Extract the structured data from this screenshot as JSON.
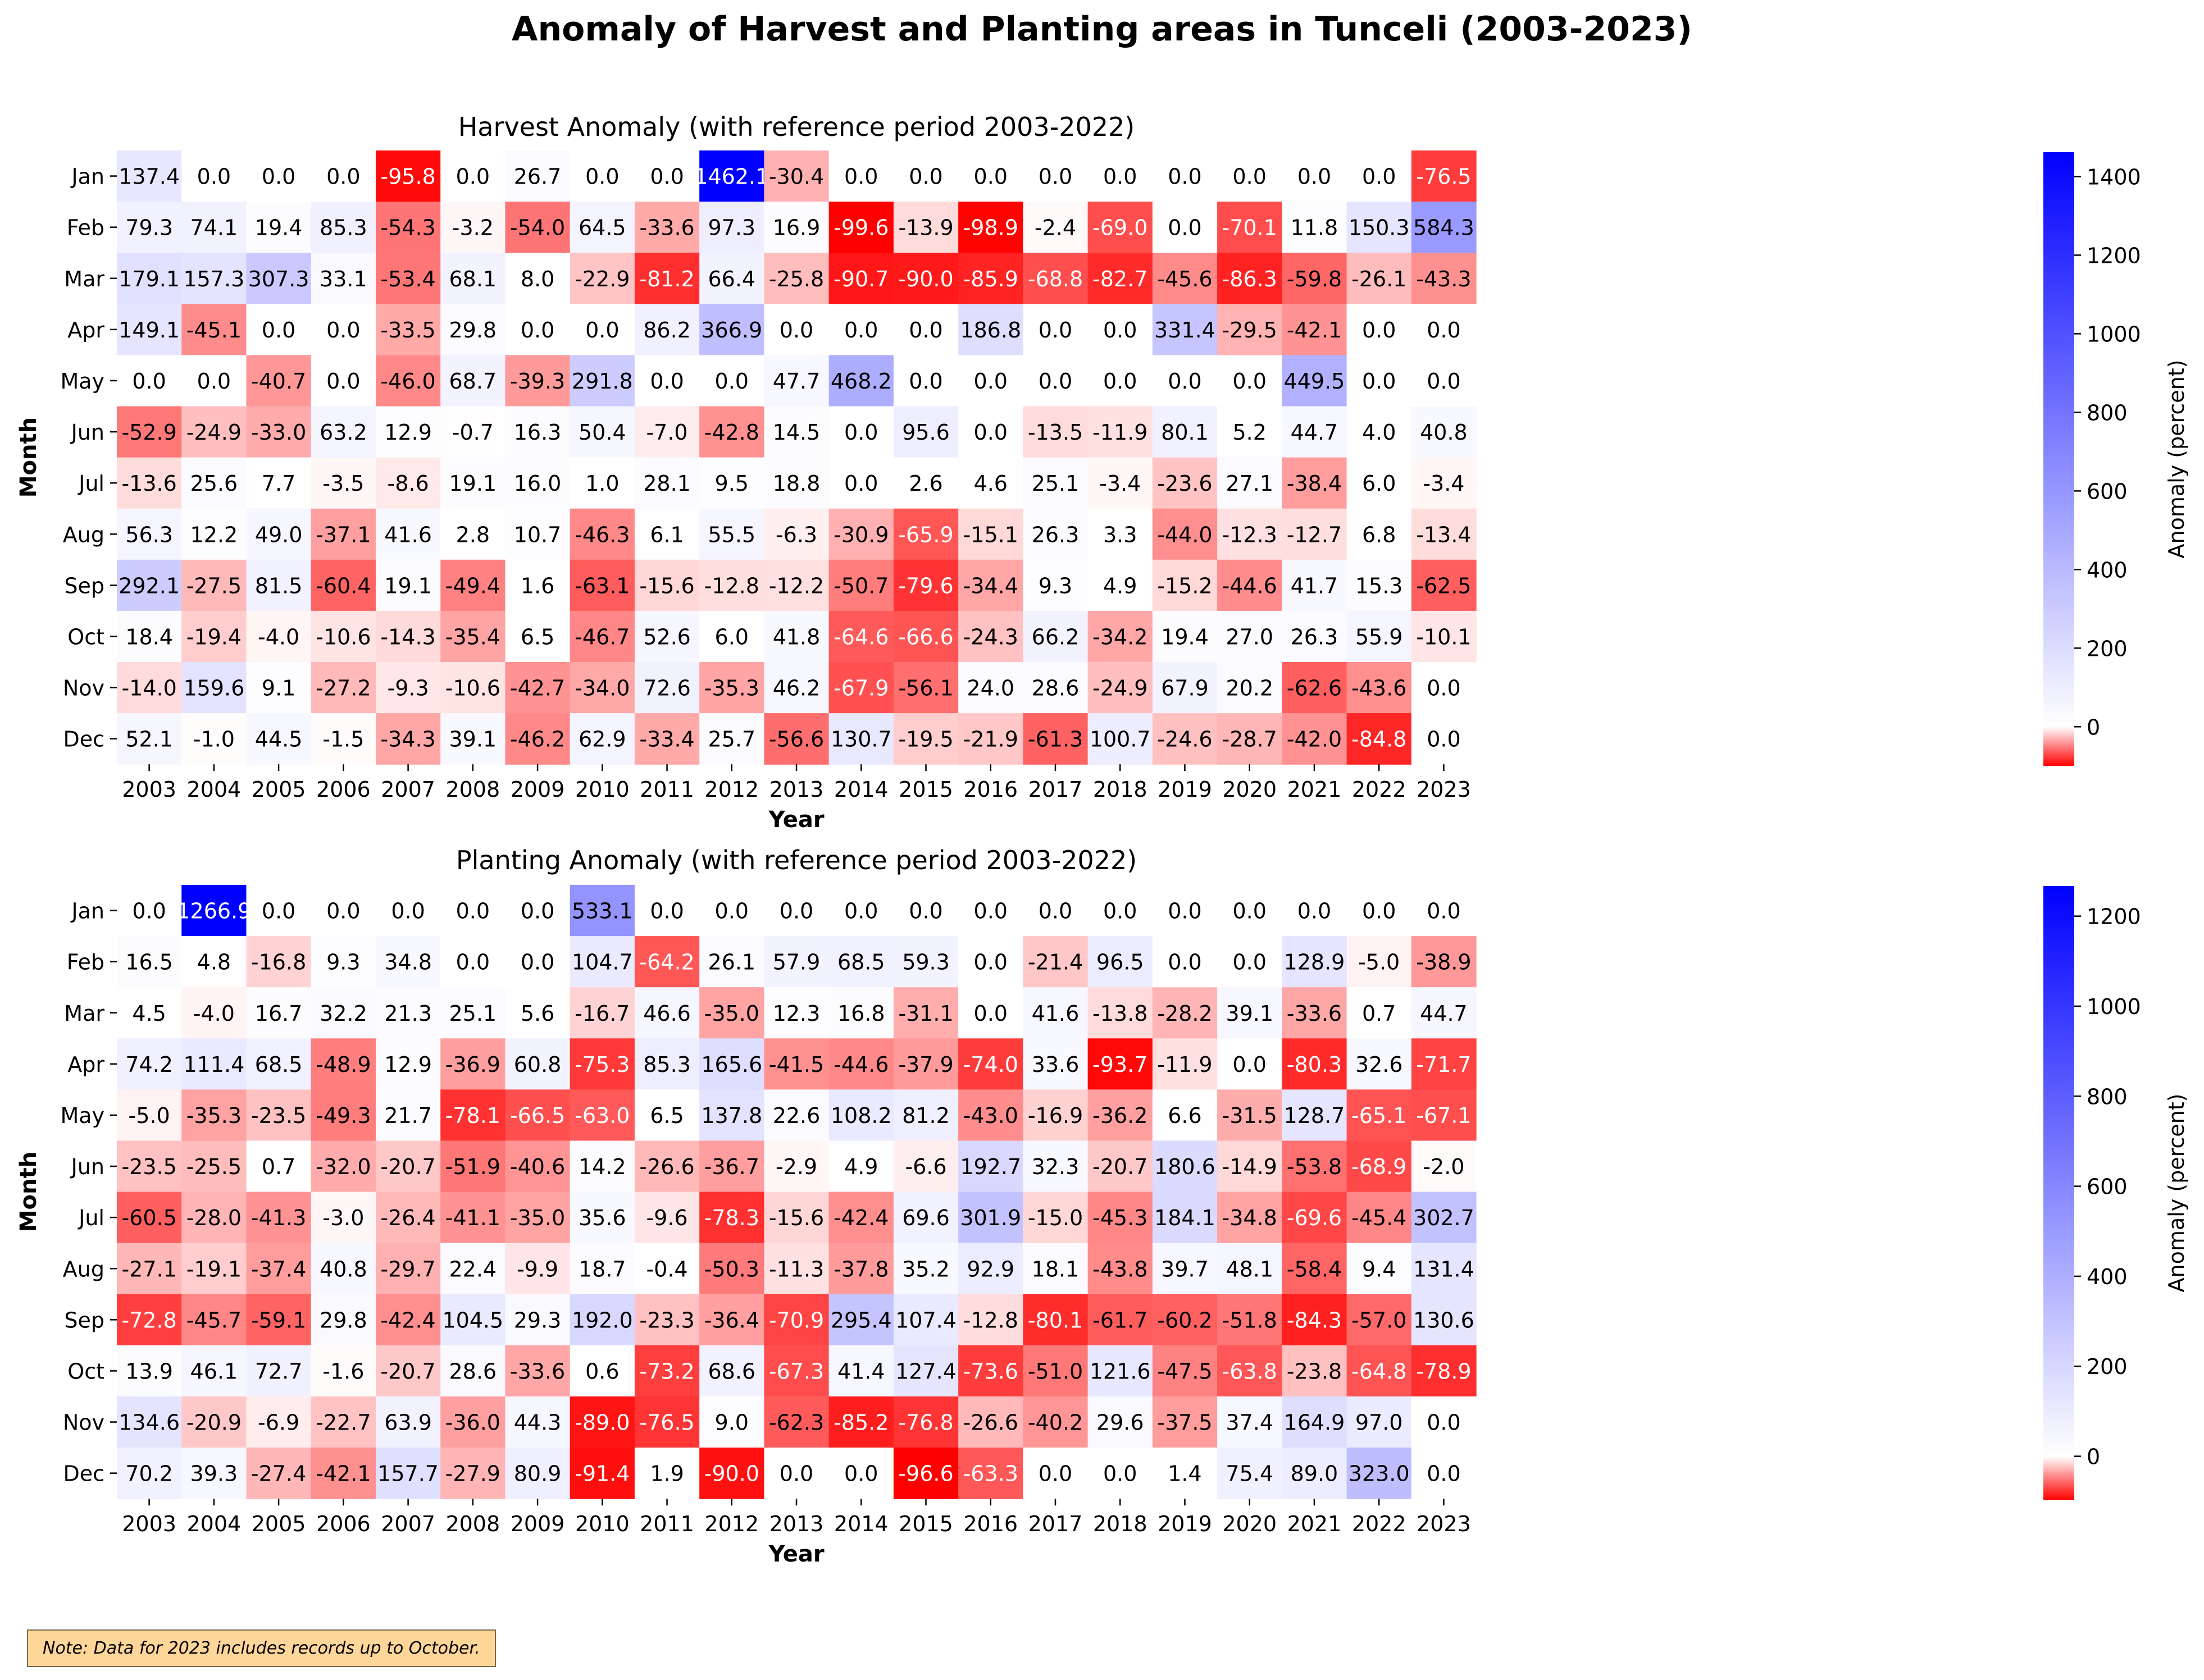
{
  "suptitle": "Anomaly of Harvest and Planting areas in Tunceli (2003-2023)",
  "note": "Note: Data for 2023 includes records up to October.",
  "colors": {
    "negative": "#ff0000",
    "neutral": "#ffffff",
    "positive": "#0000ff"
  },
  "chart_data": [
    {
      "type": "heatmap",
      "title": "Harvest Anomaly (with reference period 2003-2022)",
      "xlabel": "Year",
      "ylabel": "Month",
      "colorbar_label": "Anomaly (percent)",
      "colorbar_ticks": [
        0,
        200,
        400,
        600,
        800,
        1000,
        1200,
        1400
      ],
      "vmin": -99.6,
      "vmax": 1462.1,
      "vcenter": 0,
      "x": [
        "2003",
        "2004",
        "2005",
        "2006",
        "2007",
        "2008",
        "2009",
        "2010",
        "2011",
        "2012",
        "2013",
        "2014",
        "2015",
        "2016",
        "2017",
        "2018",
        "2019",
        "2020",
        "2021",
        "2022",
        "2023"
      ],
      "y": [
        "Jan",
        "Feb",
        "Mar",
        "Apr",
        "May",
        "Jun",
        "Jul",
        "Aug",
        "Sep",
        "Oct",
        "Nov",
        "Dec"
      ],
      "values": [
        [
          "137.4",
          "0.0",
          "0.0",
          "0.0",
          "-95.8",
          "0.0",
          "26.7",
          "0.0",
          "0.0",
          "1462.1",
          "-30.4",
          "0.0",
          "0.0",
          "0.0",
          "0.0",
          "0.0",
          "0.0",
          "0.0",
          "0.0",
          "0.0",
          "-76.5"
        ],
        [
          "79.3",
          "74.1",
          "19.4",
          "85.3",
          "-54.3",
          "-3.2",
          "-54.0",
          "64.5",
          "-33.6",
          "97.3",
          "16.9",
          "-99.6",
          "-13.9",
          "-98.9",
          "-2.4",
          "-69.0",
          "0.0",
          "-70.1",
          "11.8",
          "150.3",
          "584.3"
        ],
        [
          "179.1",
          "157.3",
          "307.3",
          "33.1",
          "-53.4",
          "68.1",
          "8.0",
          "-22.9",
          "-81.2",
          "66.4",
          "-25.8",
          "-90.7",
          "-90.0",
          "-85.9",
          "-68.8",
          "-82.7",
          "-45.6",
          "-86.3",
          "-59.8",
          "-26.1",
          "-43.3"
        ],
        [
          "149.1",
          "-45.1",
          "0.0",
          "0.0",
          "-33.5",
          "29.8",
          "0.0",
          "0.0",
          "86.2",
          "366.9",
          "0.0",
          "0.0",
          "0.0",
          "186.8",
          "0.0",
          "0.0",
          "331.4",
          "-29.5",
          "-42.1",
          "0.0",
          "0.0"
        ],
        [
          "0.0",
          "0.0",
          "-40.7",
          "0.0",
          "-46.0",
          "68.7",
          "-39.3",
          "291.8",
          "0.0",
          "0.0",
          "47.7",
          "468.2",
          "0.0",
          "0.0",
          "0.0",
          "0.0",
          "0.0",
          "0.0",
          "449.5",
          "0.0",
          "0.0"
        ],
        [
          "-52.9",
          "-24.9",
          "-33.0",
          "63.2",
          "12.9",
          "-0.7",
          "16.3",
          "50.4",
          "-7.0",
          "-42.8",
          "14.5",
          "0.0",
          "95.6",
          "0.0",
          "-13.5",
          "-11.9",
          "80.1",
          "5.2",
          "44.7",
          "4.0",
          "40.8"
        ],
        [
          "-13.6",
          "25.6",
          "7.7",
          "-3.5",
          "-8.6",
          "19.1",
          "16.0",
          "1.0",
          "28.1",
          "9.5",
          "18.8",
          "0.0",
          "2.6",
          "4.6",
          "25.1",
          "-3.4",
          "-23.6",
          "27.1",
          "-38.4",
          "6.0",
          "-3.4"
        ],
        [
          "56.3",
          "12.2",
          "49.0",
          "-37.1",
          "41.6",
          "2.8",
          "10.7",
          "-46.3",
          "6.1",
          "55.5",
          "-6.3",
          "-30.9",
          "-65.9",
          "-15.1",
          "26.3",
          "3.3",
          "-44.0",
          "-12.3",
          "-12.7",
          "6.8",
          "-13.4"
        ],
        [
          "292.1",
          "-27.5",
          "81.5",
          "-60.4",
          "19.1",
          "-49.4",
          "1.6",
          "-63.1",
          "-15.6",
          "-12.8",
          "-12.2",
          "-50.7",
          "-79.6",
          "-34.4",
          "9.3",
          "4.9",
          "-15.2",
          "-44.6",
          "41.7",
          "15.3",
          "-62.5"
        ],
        [
          "18.4",
          "-19.4",
          "-4.0",
          "-10.6",
          "-14.3",
          "-35.4",
          "6.5",
          "-46.7",
          "52.6",
          "6.0",
          "41.8",
          "-64.6",
          "-66.6",
          "-24.3",
          "66.2",
          "-34.2",
          "19.4",
          "27.0",
          "26.3",
          "55.9",
          "-10.1"
        ],
        [
          "-14.0",
          "159.6",
          "9.1",
          "-27.2",
          "-9.3",
          "-10.6",
          "-42.7",
          "-34.0",
          "72.6",
          "-35.3",
          "46.2",
          "-67.9",
          "-56.1",
          "24.0",
          "28.6",
          "-24.9",
          "67.9",
          "20.2",
          "-62.6",
          "-43.6",
          "0.0"
        ],
        [
          "52.1",
          "-1.0",
          "44.5",
          "-1.5",
          "-34.3",
          "39.1",
          "-46.2",
          "62.9",
          "-33.4",
          "25.7",
          "-56.6",
          "130.7",
          "-19.5",
          "-21.9",
          "-61.3",
          "100.7",
          "-24.6",
          "-28.7",
          "-42.0",
          "-84.8",
          "0.0"
        ]
      ]
    },
    {
      "type": "heatmap",
      "title": "Planting Anomaly (with reference period 2003-2022)",
      "xlabel": "Year",
      "ylabel": "Month",
      "colorbar_label": "Anomaly (percent)",
      "colorbar_ticks": [
        0,
        200,
        400,
        600,
        800,
        1000,
        1200
      ],
      "vmin": -96.6,
      "vmax": 1266.9,
      "vcenter": 0,
      "x": [
        "2003",
        "2004",
        "2005",
        "2006",
        "2007",
        "2008",
        "2009",
        "2010",
        "2011",
        "2012",
        "2013",
        "2014",
        "2015",
        "2016",
        "2017",
        "2018",
        "2019",
        "2020",
        "2021",
        "2022",
        "2023"
      ],
      "y": [
        "Jan",
        "Feb",
        "Mar",
        "Apr",
        "May",
        "Jun",
        "Jul",
        "Aug",
        "Sep",
        "Oct",
        "Nov",
        "Dec"
      ],
      "values": [
        [
          "0.0",
          "1266.9",
          "0.0",
          "0.0",
          "0.0",
          "0.0",
          "0.0",
          "533.1",
          "0.0",
          "0.0",
          "0.0",
          "0.0",
          "0.0",
          "0.0",
          "0.0",
          "0.0",
          "0.0",
          "0.0",
          "0.0",
          "0.0",
          "0.0"
        ],
        [
          "16.5",
          "4.8",
          "-16.8",
          "9.3",
          "34.8",
          "0.0",
          "0.0",
          "104.7",
          "-64.2",
          "26.1",
          "57.9",
          "68.5",
          "59.3",
          "0.0",
          "-21.4",
          "96.5",
          "0.0",
          "0.0",
          "128.9",
          "-5.0",
          "-38.9"
        ],
        [
          "4.5",
          "-4.0",
          "16.7",
          "32.2",
          "21.3",
          "25.1",
          "5.6",
          "-16.7",
          "46.6",
          "-35.0",
          "12.3",
          "16.8",
          "-31.1",
          "0.0",
          "41.6",
          "-13.8",
          "-28.2",
          "39.1",
          "-33.6",
          "0.7",
          "44.7"
        ],
        [
          "74.2",
          "111.4",
          "68.5",
          "-48.9",
          "12.9",
          "-36.9",
          "60.8",
          "-75.3",
          "85.3",
          "165.6",
          "-41.5",
          "-44.6",
          "-37.9",
          "-74.0",
          "33.6",
          "-93.7",
          "-11.9",
          "0.0",
          "-80.3",
          "32.6",
          "-71.7"
        ],
        [
          "-5.0",
          "-35.3",
          "-23.5",
          "-49.3",
          "21.7",
          "-78.1",
          "-66.5",
          "-63.0",
          "6.5",
          "137.8",
          "22.6",
          "108.2",
          "81.2",
          "-43.0",
          "-16.9",
          "-36.2",
          "6.6",
          "-31.5",
          "128.7",
          "-65.1",
          "-67.1"
        ],
        [
          "-23.5",
          "-25.5",
          "0.7",
          "-32.0",
          "-20.7",
          "-51.9",
          "-40.6",
          "14.2",
          "-26.6",
          "-36.7",
          "-2.9",
          "4.9",
          "-6.6",
          "192.7",
          "32.3",
          "-20.7",
          "180.6",
          "-14.9",
          "-53.8",
          "-68.9",
          "-2.0"
        ],
        [
          "-60.5",
          "-28.0",
          "-41.3",
          "-3.0",
          "-26.4",
          "-41.1",
          "-35.0",
          "35.6",
          "-9.6",
          "-78.3",
          "-15.6",
          "-42.4",
          "69.6",
          "301.9",
          "-15.0",
          "-45.3",
          "184.1",
          "-34.8",
          "-69.6",
          "-45.4",
          "302.7"
        ],
        [
          "-27.1",
          "-19.1",
          "-37.4",
          "40.8",
          "-29.7",
          "22.4",
          "-9.9",
          "18.7",
          "-0.4",
          "-50.3",
          "-11.3",
          "-37.8",
          "35.2",
          "92.9",
          "18.1",
          "-43.8",
          "39.7",
          "48.1",
          "-58.4",
          "9.4",
          "131.4"
        ],
        [
          "-72.8",
          "-45.7",
          "-59.1",
          "29.8",
          "-42.4",
          "104.5",
          "29.3",
          "192.0",
          "-23.3",
          "-36.4",
          "-70.9",
          "295.4",
          "107.4",
          "-12.8",
          "-80.1",
          "-61.7",
          "-60.2",
          "-51.8",
          "-84.3",
          "-57.0",
          "130.6"
        ],
        [
          "13.9",
          "46.1",
          "72.7",
          "-1.6",
          "-20.7",
          "28.6",
          "-33.6",
          "0.6",
          "-73.2",
          "68.6",
          "-67.3",
          "41.4",
          "127.4",
          "-73.6",
          "-51.0",
          "121.6",
          "-47.5",
          "-63.8",
          "-23.8",
          "-64.8",
          "-78.9"
        ],
        [
          "134.6",
          "-20.9",
          "-6.9",
          "-22.7",
          "63.9",
          "-36.0",
          "44.3",
          "-89.0",
          "-76.5",
          "9.0",
          "-62.3",
          "-85.2",
          "-76.8",
          "-26.6",
          "-40.2",
          "29.6",
          "-37.5",
          "37.4",
          "164.9",
          "97.0",
          "0.0"
        ],
        [
          "70.2",
          "39.3",
          "-27.4",
          "-42.1",
          "157.7",
          "-27.9",
          "80.9",
          "-91.4",
          "1.9",
          "-90.0",
          "0.0",
          "0.0",
          "-96.6",
          "-63.3",
          "0.0",
          "0.0",
          "1.4",
          "75.4",
          "89.0",
          "323.0",
          "0.0"
        ]
      ]
    }
  ]
}
